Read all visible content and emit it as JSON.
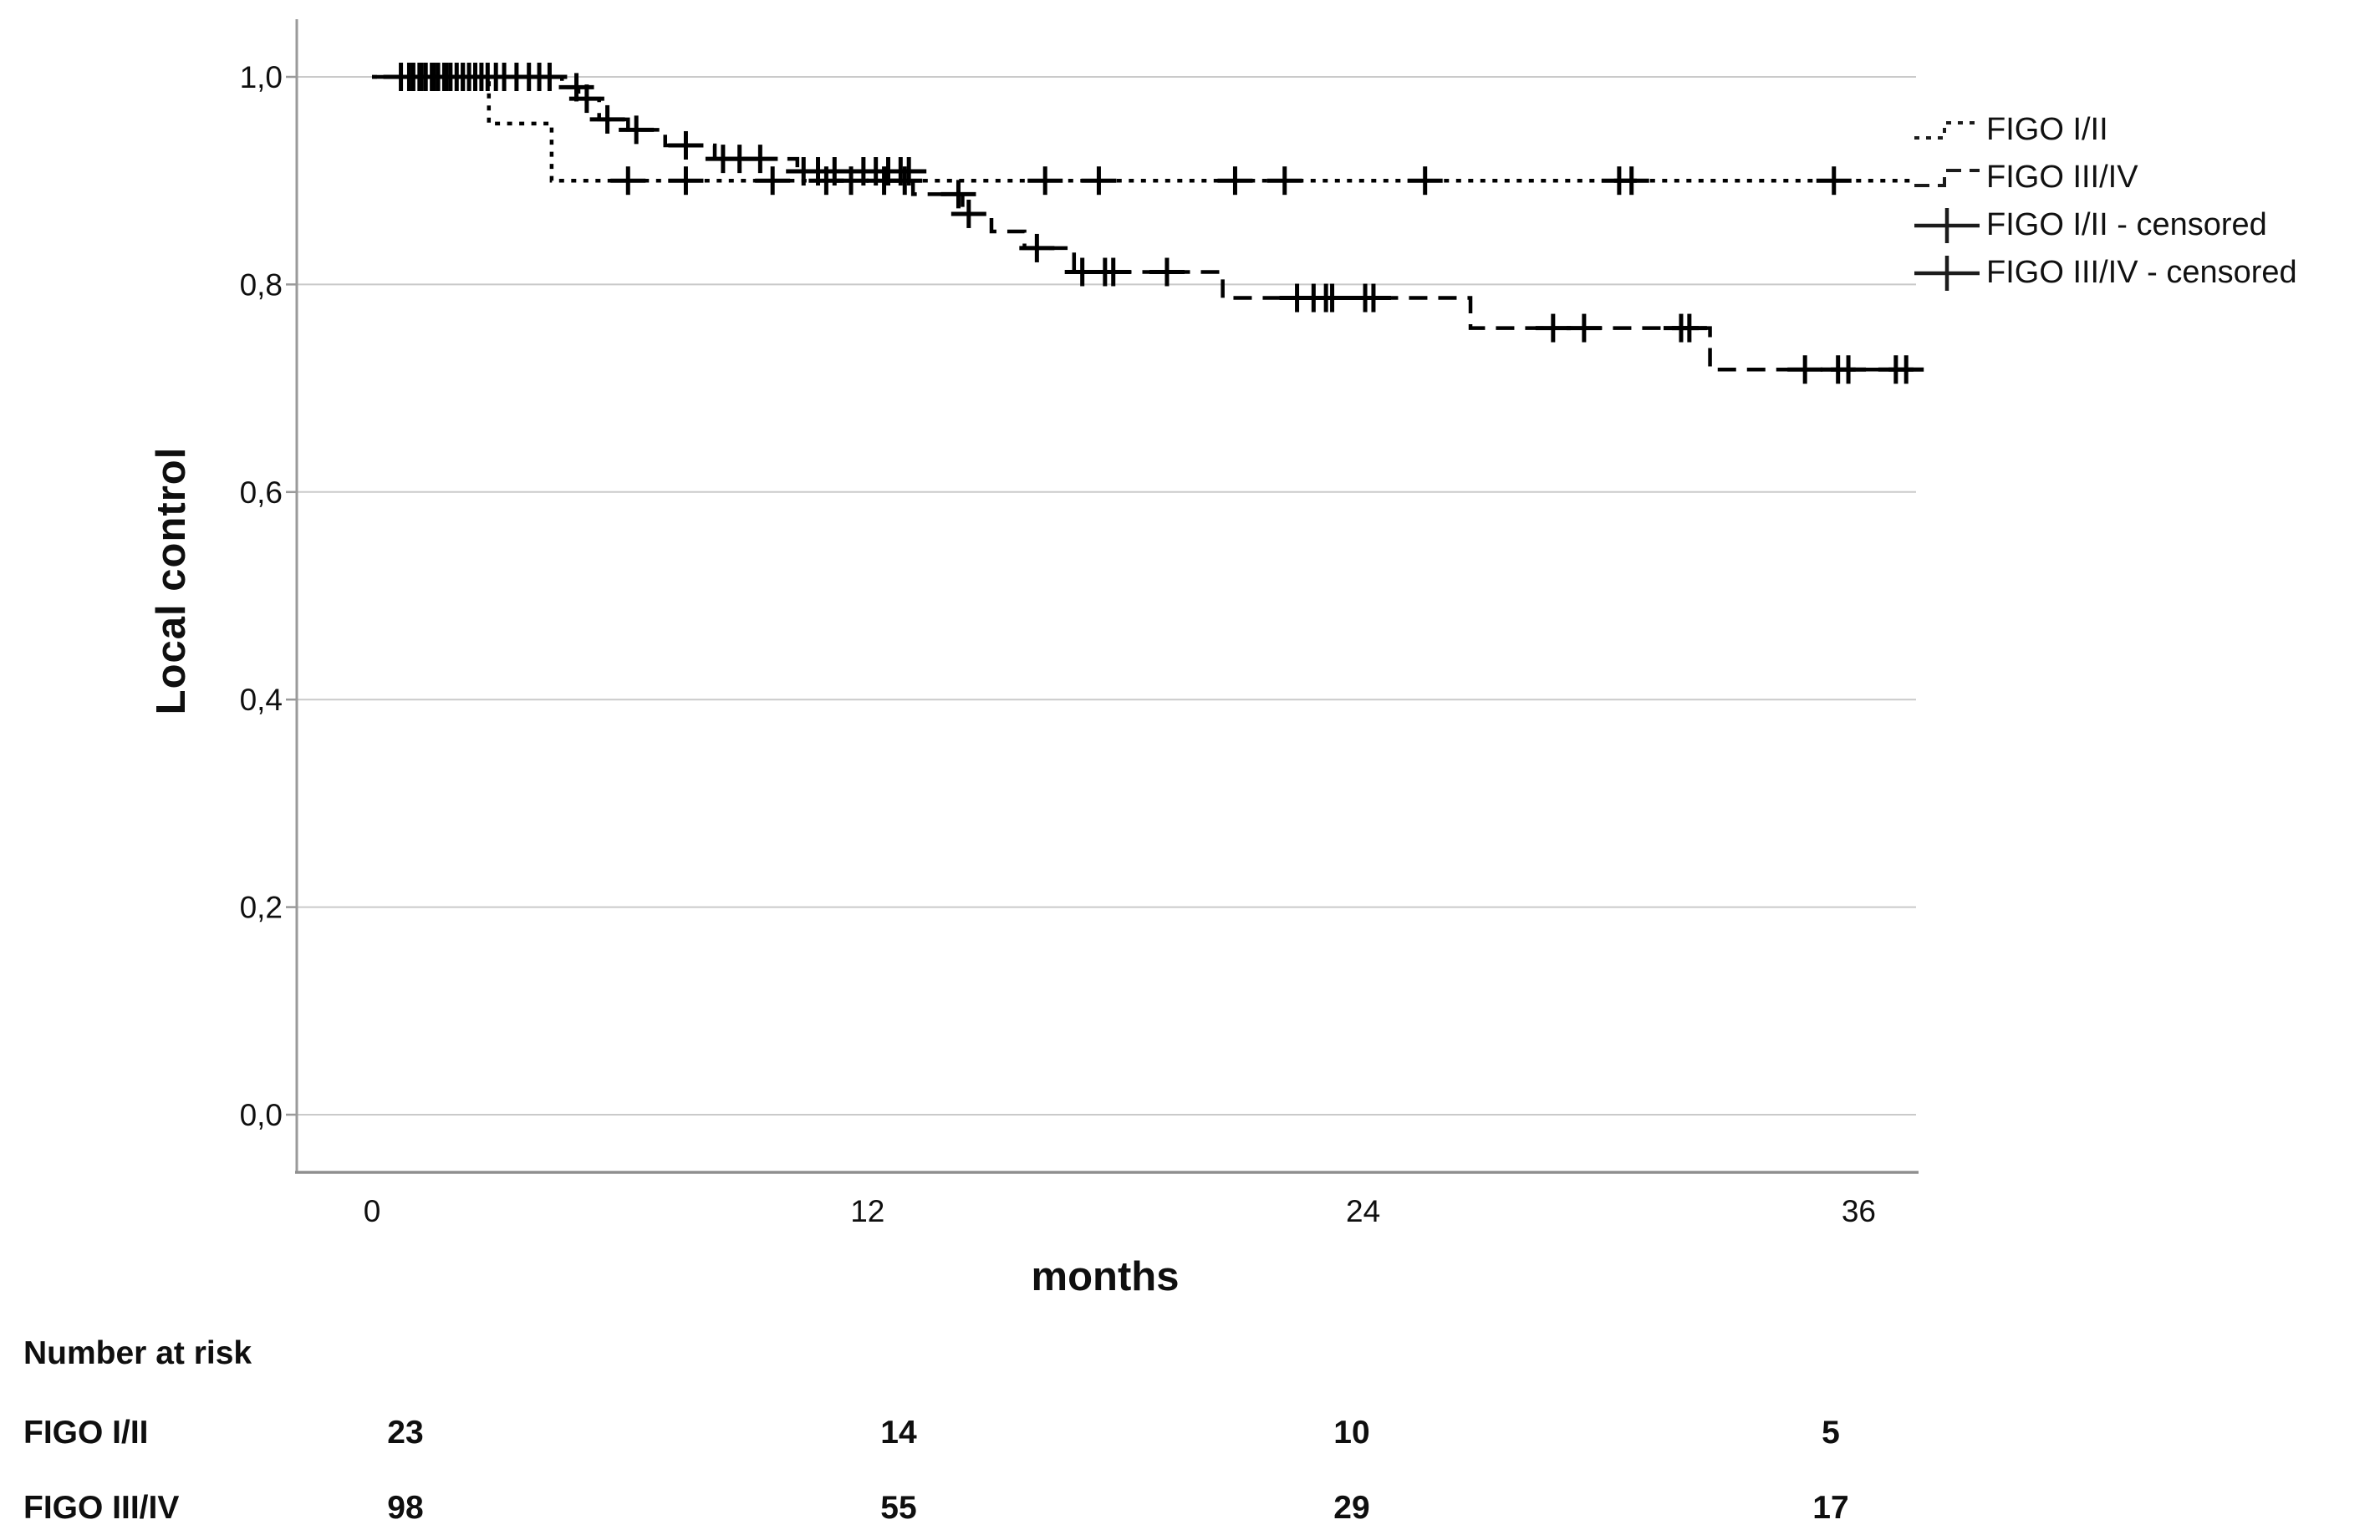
{
  "figure": {
    "y_axis_label": "Local control",
    "x_axis_label": "months"
  },
  "legend": {
    "items": [
      {
        "label": "FIGO I/II",
        "style": "dotted-step"
      },
      {
        "label": "FIGO III/IV",
        "style": "dashed-step"
      },
      {
        "label": "FIGO I/II - censored",
        "style": "censor-cross"
      },
      {
        "label": "FIGO III/IV - censored",
        "style": "censor-cross"
      }
    ]
  },
  "risk_table": {
    "title": "Number at risk",
    "time_points": [
      0,
      12,
      24,
      36
    ],
    "rows": [
      {
        "label": "FIGO I/II",
        "values": [
          "23",
          "14",
          "10",
          "5"
        ]
      },
      {
        "label": "FIGO III/IV",
        "values": [
          "98",
          "55",
          "29",
          "17"
        ]
      }
    ]
  },
  "colors": {
    "curve": "#000000",
    "grid": "#cacaca",
    "axis": "#9a9a9a",
    "text": "#0f0f0f"
  },
  "chart_data": {
    "type": "line",
    "subtype": "kaplan_meier_step",
    "title": "",
    "xlabel": "months",
    "ylabel": "Local control",
    "xlim": [
      -1.8,
      37.4
    ],
    "ylim": [
      -0.055,
      1.056
    ],
    "grid": "horizontal-only",
    "legend_position": "right",
    "x_ticks": [
      {
        "value": 0,
        "label": "0"
      },
      {
        "value": 12,
        "label": "12"
      },
      {
        "value": 24,
        "label": "24"
      },
      {
        "value": 36,
        "label": "36"
      }
    ],
    "y_ticks": [
      {
        "value": 1.0,
        "label": "1,0"
      },
      {
        "value": 0.8,
        "label": "0,8"
      },
      {
        "value": 0.6,
        "label": "0,6"
      },
      {
        "value": 0.4,
        "label": "0,4"
      },
      {
        "value": 0.2,
        "label": "0,2"
      },
      {
        "value": 0.0,
        "label": "0,0"
      }
    ],
    "series": [
      {
        "name": "FIGO I/II",
        "line_style": "dotted",
        "end_time": 37.3,
        "steps": [
          [
            0,
            1.0
          ],
          [
            2.83,
            0.955
          ],
          [
            4.35,
            0.9
          ]
        ],
        "censored": [
          [
            0.9,
            1.0
          ],
          [
            1.2,
            1.0
          ],
          [
            1.5,
            1.0
          ],
          [
            1.8,
            1.0
          ],
          [
            2.2,
            1.0
          ],
          [
            2.5,
            1.0
          ],
          [
            6.2,
            0.9
          ],
          [
            7.6,
            0.9
          ],
          [
            9.7,
            0.9
          ],
          [
            11.0,
            0.9
          ],
          [
            11.6,
            0.9
          ],
          [
            12.4,
            0.9
          ],
          [
            12.9,
            0.9
          ],
          [
            16.3,
            0.9
          ],
          [
            17.6,
            0.9
          ],
          [
            20.9,
            0.9
          ],
          [
            22.1,
            0.9
          ],
          [
            25.5,
            0.9
          ],
          [
            30.2,
            0.9
          ],
          [
            30.5,
            0.9
          ],
          [
            35.4,
            0.9
          ]
        ]
      },
      {
        "name": "FIGO III/IV",
        "line_style": "dashed",
        "end_time": 37.4,
        "steps": [
          [
            0,
            1.0
          ],
          [
            4.6,
            0.99
          ],
          [
            5.0,
            0.979
          ],
          [
            5.5,
            0.959
          ],
          [
            6.2,
            0.949
          ],
          [
            7.1,
            0.934
          ],
          [
            8.3,
            0.921
          ],
          [
            10.3,
            0.909
          ],
          [
            13.1,
            0.887
          ],
          [
            14.3,
            0.868
          ],
          [
            15.0,
            0.851
          ],
          [
            15.8,
            0.835
          ],
          [
            17.0,
            0.812
          ],
          [
            20.6,
            0.787
          ],
          [
            26.6,
            0.758
          ],
          [
            32.4,
            0.718
          ]
        ],
        "censored": [
          [
            0.7,
            1.0
          ],
          [
            1.0,
            1.0
          ],
          [
            1.15,
            1.0
          ],
          [
            1.3,
            1.0
          ],
          [
            1.45,
            1.0
          ],
          [
            1.6,
            1.0
          ],
          [
            1.75,
            1.0
          ],
          [
            1.9,
            1.0
          ],
          [
            2.05,
            1.0
          ],
          [
            2.2,
            1.0
          ],
          [
            2.35,
            1.0
          ],
          [
            2.5,
            1.0
          ],
          [
            2.65,
            1.0
          ],
          [
            2.8,
            1.0
          ],
          [
            3.0,
            1.0
          ],
          [
            3.2,
            1.0
          ],
          [
            3.5,
            1.0
          ],
          [
            3.8,
            1.0
          ],
          [
            4.05,
            1.0
          ],
          [
            4.3,
            1.0
          ],
          [
            4.95,
            0.99
          ],
          [
            5.2,
            0.979
          ],
          [
            5.7,
            0.959
          ],
          [
            6.4,
            0.949
          ],
          [
            7.6,
            0.934
          ],
          [
            8.5,
            0.921
          ],
          [
            8.9,
            0.921
          ],
          [
            9.4,
            0.921
          ],
          [
            10.45,
            0.909
          ],
          [
            10.8,
            0.909
          ],
          [
            11.2,
            0.909
          ],
          [
            11.9,
            0.909
          ],
          [
            12.2,
            0.909
          ],
          [
            12.5,
            0.909
          ],
          [
            12.8,
            0.909
          ],
          [
            13.0,
            0.909
          ],
          [
            14.2,
            0.887
          ],
          [
            14.45,
            0.868
          ],
          [
            16.1,
            0.835
          ],
          [
            17.2,
            0.812
          ],
          [
            17.75,
            0.812
          ],
          [
            17.95,
            0.812
          ],
          [
            19.25,
            0.812
          ],
          [
            22.4,
            0.787
          ],
          [
            22.8,
            0.787
          ],
          [
            23.1,
            0.787
          ],
          [
            23.25,
            0.787
          ],
          [
            24.05,
            0.787
          ],
          [
            24.25,
            0.787
          ],
          [
            28.6,
            0.758
          ],
          [
            29.35,
            0.758
          ],
          [
            31.7,
            0.758
          ],
          [
            31.9,
            0.758
          ],
          [
            34.7,
            0.718
          ],
          [
            35.5,
            0.718
          ],
          [
            35.75,
            0.718
          ],
          [
            36.9,
            0.718
          ],
          [
            37.15,
            0.718
          ]
        ]
      }
    ]
  }
}
